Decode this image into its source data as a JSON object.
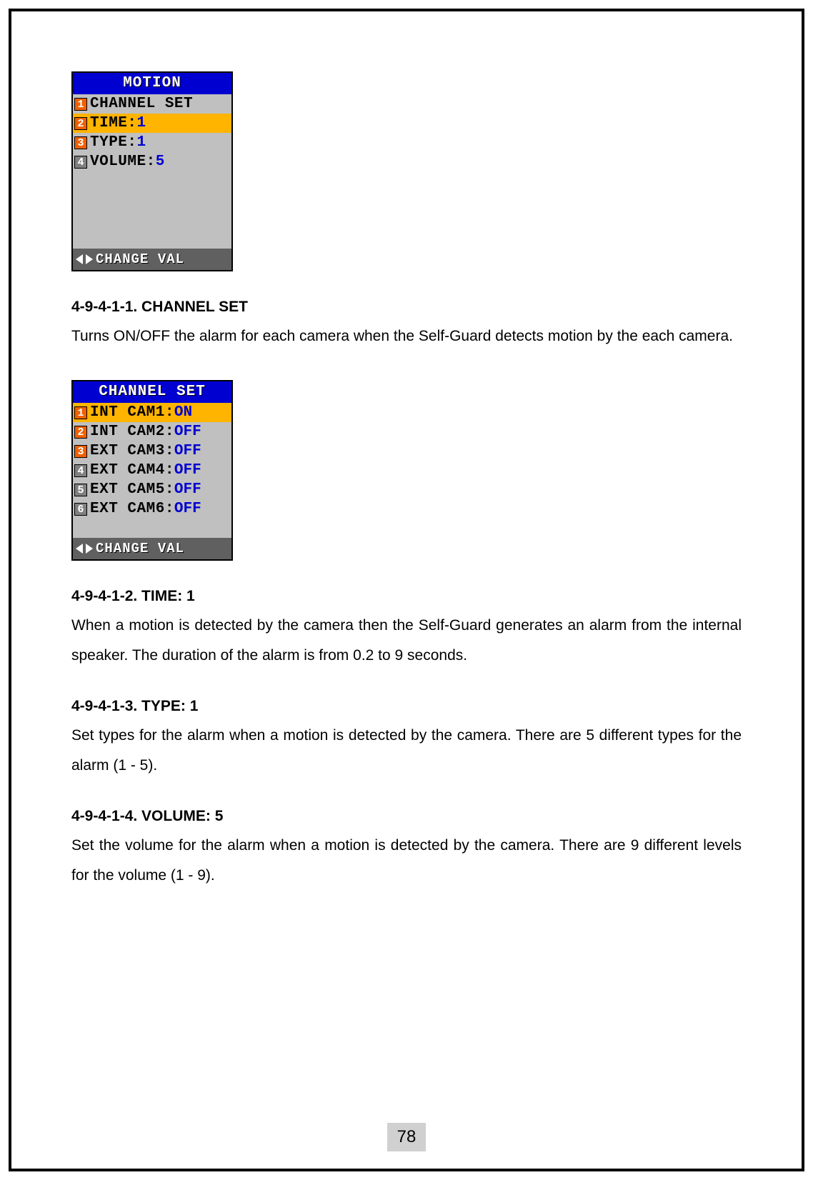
{
  "page_number": "78",
  "motion_menu": {
    "title": "MOTION",
    "footer": "CHANGE VAL",
    "selected_index": 1,
    "rows": [
      {
        "num": "1",
        "label": "CHANNEL SET",
        "value": "",
        "num_gray": false
      },
      {
        "num": "2",
        "label": "TIME:",
        "value": "1",
        "num_gray": false
      },
      {
        "num": "3",
        "label": "TYPE:",
        "value": "1",
        "num_gray": false
      },
      {
        "num": "4",
        "label": "VOLUME:",
        "value": "5",
        "num_gray": true
      }
    ],
    "blank_rows": 4
  },
  "channel_menu": {
    "title": "CHANNEL SET",
    "footer": "CHANGE VAL",
    "selected_index": 0,
    "rows": [
      {
        "num": "1",
        "label": "INT CAM1:",
        "value": "ON",
        "num_gray": false
      },
      {
        "num": "2",
        "label": "INT CAM2:",
        "value": "OFF",
        "num_gray": false
      },
      {
        "num": "3",
        "label": "EXT CAM3:",
        "value": "OFF",
        "num_gray": false
      },
      {
        "num": "4",
        "label": "EXT CAM4:",
        "value": "OFF",
        "num_gray": true
      },
      {
        "num": "5",
        "label": "EXT CAM5:",
        "value": "OFF",
        "num_gray": true
      },
      {
        "num": "6",
        "label": "EXT CAM6:",
        "value": "OFF",
        "num_gray": true
      }
    ],
    "blank_rows": 1
  },
  "sections": [
    {
      "heading": "4-9-4-1-1. CHANNEL SET",
      "body": "Turns ON/OFF the alarm for each camera when the Self-Guard detects motion by the each camera."
    },
    {
      "heading": "4-9-4-1-2. TIME: 1",
      "body": "When a motion is detected by the camera then the Self-Guard generates an alarm from the internal speaker. The duration of the alarm is from 0.2 to 9 seconds."
    },
    {
      "heading": "4-9-4-1-3. TYPE: 1",
      "body": "Set types for the alarm when a motion is detected by the camera. There are 5 different types for the alarm (1 - 5)."
    },
    {
      "heading": "4-9-4-1-4. VOLUME: 5",
      "body": "Set the volume for the alarm when a motion is detected by the camera. There are 9 different levels for the volume (1 - 9)."
    }
  ],
  "colors": {
    "title_bg": "#0000d0",
    "selected_bg": "#ffb400",
    "num_bg": "#f06000",
    "num_gray_bg": "#808080",
    "lcd_bg": "#c0c0c0",
    "footer_bg": "#606060",
    "value_color": "#0000d0",
    "page_num_bg": "#d0d0d0"
  }
}
